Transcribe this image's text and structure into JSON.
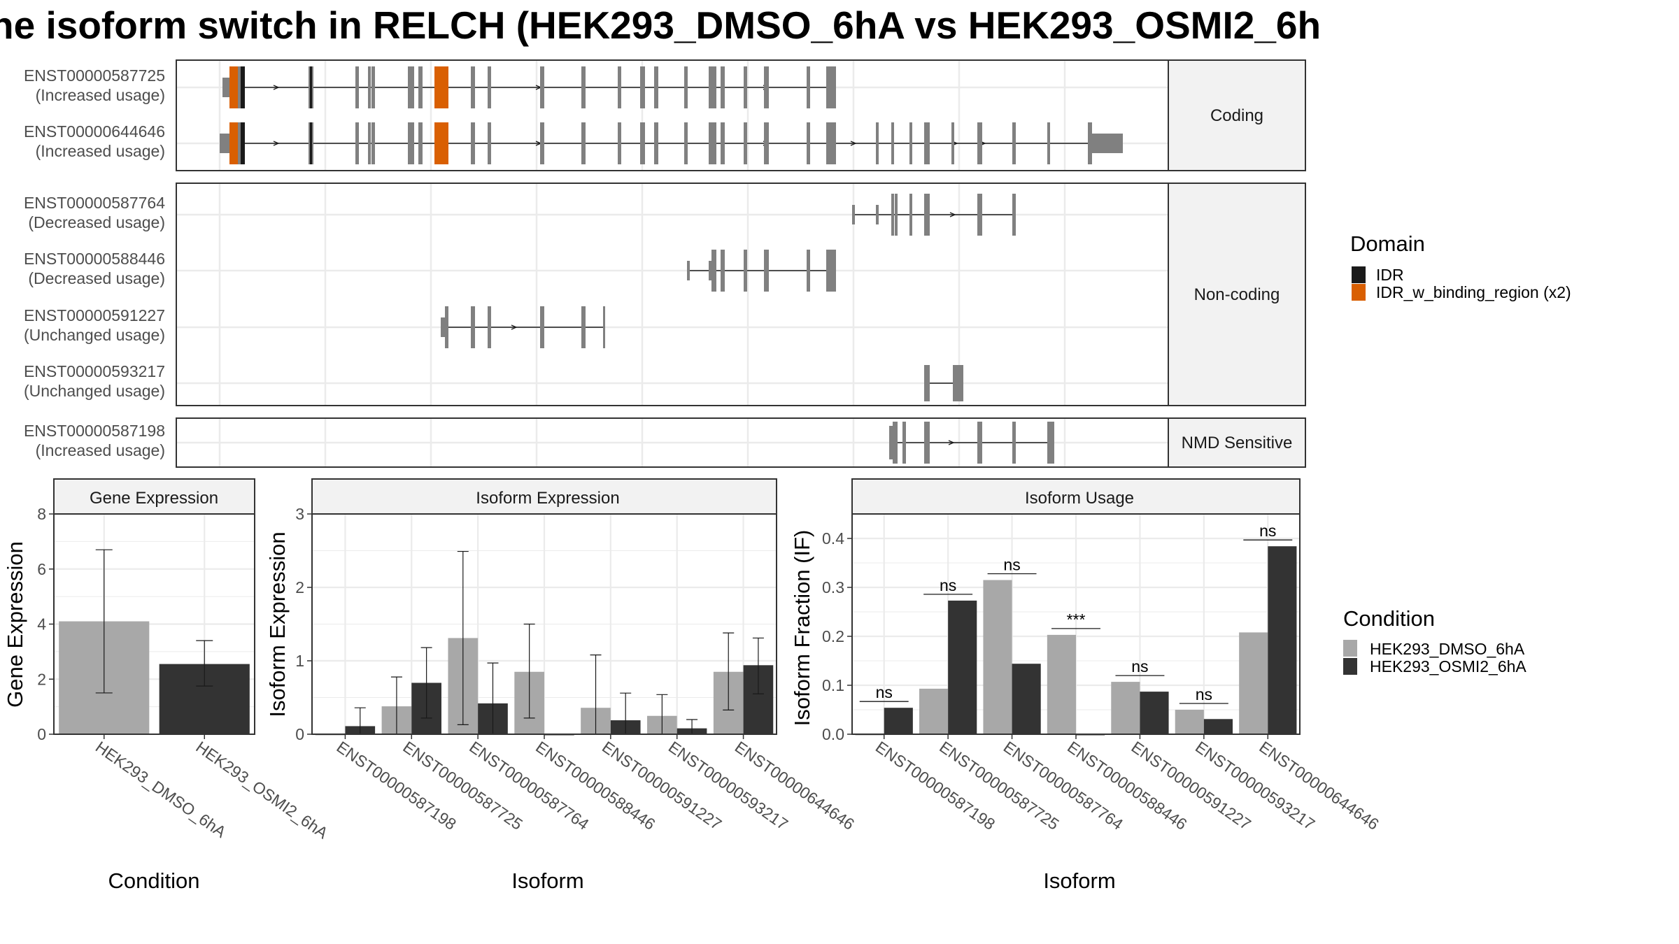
{
  "title": "he isoform switch in RELCH (HEK293_DMSO_6hA vs HEK293_OSMI2_6h",
  "colors": {
    "exon": "#808080",
    "idr": "#1a1a1a",
    "idr_binding": "#d95f02",
    "dmso": "#a8a8a8",
    "osmi": "#333333",
    "grid": "#ebebeb",
    "strip": "#f2f2f2"
  },
  "transcript_panels": [
    {
      "label": "Coding",
      "transcripts": [
        {
          "id": "ENST00000587725",
          "usage": "(Increased usage)"
        },
        {
          "id": "ENST00000644646",
          "usage": "(Increased usage)"
        }
      ]
    },
    {
      "label": "Non-coding",
      "transcripts": [
        {
          "id": "ENST00000587764",
          "usage": "(Decreased usage)"
        },
        {
          "id": "ENST00000588446",
          "usage": "(Decreased usage)"
        },
        {
          "id": "ENST00000591227",
          "usage": "(Unchanged usage)"
        },
        {
          "id": "ENST00000593217",
          "usage": "(Unchanged usage)"
        }
      ]
    },
    {
      "label": "NMD Sensitive",
      "transcripts": [
        {
          "id": "ENST00000587198",
          "usage": "(Increased usage)"
        }
      ]
    }
  ],
  "domain_legend": {
    "title": "Domain",
    "items": [
      {
        "label": "IDR",
        "color": "#1a1a1a"
      },
      {
        "label": "IDR_w_binding_region (x2)",
        "color": "#d95f02"
      }
    ]
  },
  "condition_legend": {
    "title": "Condition",
    "items": [
      {
        "label": "HEK293_DMSO_6hA",
        "color": "#a8a8a8"
      },
      {
        "label": "HEK293_OSMI2_6hA",
        "color": "#333333"
      }
    ]
  },
  "chart_data": [
    {
      "type": "bar",
      "title": "Gene Expression",
      "xlabel": "Condition",
      "ylabel": "Gene Expression",
      "ylim": [
        0,
        8
      ],
      "yticks": [
        0,
        2,
        4,
        6,
        8
      ],
      "categories": [
        "HEK293_DMSO_6hA",
        "HEK293_OSMI2_6hA"
      ],
      "values": [
        4.1,
        2.55
      ],
      "err_low": [
        1.5,
        1.75
      ],
      "err_high": [
        6.7,
        3.4
      ]
    },
    {
      "type": "bar",
      "title": "Isoform Expression",
      "xlabel": "Isoform",
      "ylabel": "Isoform Expression",
      "ylim": [
        0,
        3
      ],
      "yticks": [
        0,
        1,
        2,
        3
      ],
      "categories": [
        "ENST00000587198",
        "ENST00000587725",
        "ENST00000587764",
        "ENST00000588446",
        "ENST00000591227",
        "ENST00000593217",
        "ENST00000644646"
      ],
      "series": [
        {
          "name": "HEK293_DMSO_6hA",
          "values": [
            0.0,
            0.38,
            1.31,
            0.85,
            0.36,
            0.25,
            0.85
          ],
          "err_low": [
            0.0,
            0.0,
            0.13,
            0.22,
            0.0,
            0.0,
            0.33
          ],
          "err_high": [
            0.0,
            0.78,
            2.49,
            1.5,
            1.08,
            0.54,
            1.38
          ]
        },
        {
          "name": "HEK293_OSMI2_6hA",
          "values": [
            0.11,
            0.7,
            0.42,
            0.0,
            0.19,
            0.08,
            0.94
          ],
          "err_low": [
            0.0,
            0.22,
            0.0,
            0.0,
            0.0,
            0.0,
            0.55
          ],
          "err_high": [
            0.36,
            1.18,
            0.97,
            0.0,
            0.56,
            0.2,
            1.31
          ]
        }
      ]
    },
    {
      "type": "bar",
      "title": "Isoform Usage",
      "xlabel": "Isoform",
      "ylabel": "Isoform Fraction (IF)",
      "ylim": [
        0,
        0.45
      ],
      "yticks": [
        0.0,
        0.1,
        0.2,
        0.3,
        0.4
      ],
      "ytick_labels": [
        "0.0",
        "0.1",
        "0.2",
        "0.3",
        "0.4"
      ],
      "categories": [
        "ENST00000587198",
        "ENST00000587725",
        "ENST00000587764",
        "ENST00000588446",
        "ENST00000591227",
        "ENST00000593217",
        "ENST00000644646"
      ],
      "series": [
        {
          "name": "HEK293_DMSO_6hA",
          "values": [
            0.0,
            0.093,
            0.315,
            0.203,
            0.107,
            0.05,
            0.208
          ]
        },
        {
          "name": "HEK293_OSMI2_6hA",
          "values": [
            0.054,
            0.273,
            0.144,
            0.0,
            0.087,
            0.031,
            0.384
          ]
        }
      ],
      "significance": [
        "ns",
        "ns",
        "ns",
        "***",
        "ns",
        "ns",
        "ns"
      ]
    }
  ]
}
